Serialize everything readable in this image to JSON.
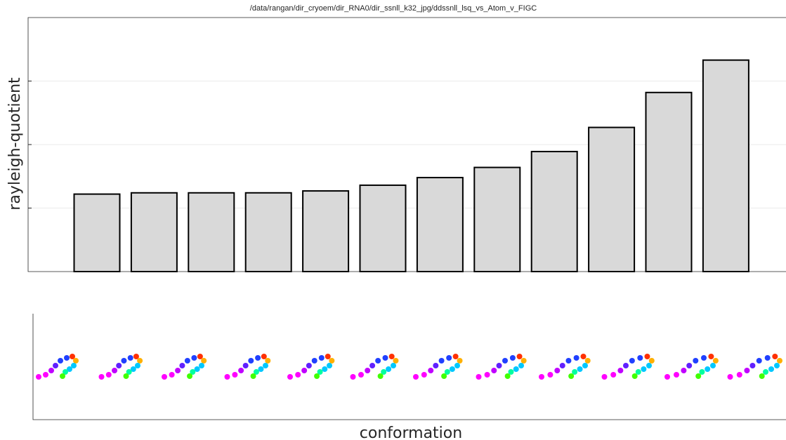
{
  "chart_data": {
    "type": "bar",
    "title": "/data/rangan/dir_cryoem/dir_RNA0/dir_ssnll_k32_jpg/ddssnll_lsq_vs_Atom_v_FIGC",
    "y_label": "rayleigh-quotient",
    "x_label": "conformation",
    "categories": [
      null,
      null,
      null,
      null,
      null,
      null,
      null,
      null,
      null,
      null,
      null,
      null
    ],
    "values": [
      1.22,
      1.24,
      1.24,
      1.24,
      1.27,
      1.36,
      1.48,
      1.64,
      1.89,
      2.27,
      2.82,
      3.33
    ],
    "color": "#d9d9d9",
    "ylim": [
      0,
      4
    ],
    "yticks": [
      1,
      2,
      3
    ],
    "grid": true
  }
}
